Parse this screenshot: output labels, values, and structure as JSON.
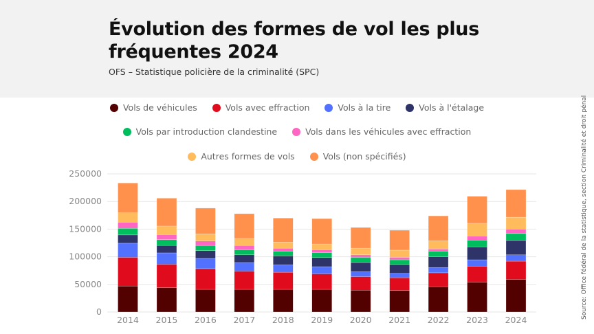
{
  "header": {
    "title": "Évolution des formes de vol les plus fréquentes 2024",
    "subtitle": "OFS – Statistique policière de la criminalité (SPC)"
  },
  "source": "Source: Office fédéral de la statistique, section Criminalité et droit pénal",
  "chart_data": {
    "type": "bar",
    "stacked": true,
    "title": "Évolution des formes de vol les plus fréquentes 2024",
    "subtitle": "OFS – Statistique policière de la criminalité (SPC)",
    "xlabel": "",
    "ylabel": "",
    "ylim": [
      0,
      250000
    ],
    "yticks": [
      "0",
      "50000",
      "100000",
      "150000",
      "200000",
      "250000"
    ],
    "grid": true,
    "legend_placement": "top",
    "categories": [
      "2014",
      "2015",
      "2016",
      "2017",
      "2018",
      "2019",
      "2020",
      "2021",
      "2022",
      "2023",
      "2024"
    ],
    "series": [
      {
        "name": "Vols de véhicules",
        "color": "#520000",
        "values": [
          47000,
          44000,
          41000,
          41000,
          41000,
          41000,
          39500,
          39000,
          46000,
          54000,
          59000
        ]
      },
      {
        "name": "Vols avec effraction",
        "color": "#e00b1c",
        "values": [
          52000,
          42500,
          37500,
          33000,
          31000,
          28000,
          24500,
          23000,
          25000,
          29000,
          33000
        ]
      },
      {
        "name": "Vols à la tire",
        "color": "#5271ff",
        "values": [
          25500,
          20500,
          18500,
          15500,
          13500,
          13000,
          9000,
          8000,
          9500,
          11500,
          11500
        ]
      },
      {
        "name": "Vols à l'étalage",
        "color": "#2e3468",
        "values": [
          15000,
          13500,
          14000,
          14000,
          16000,
          16500,
          16500,
          16000,
          19500,
          23500,
          26000
        ]
      },
      {
        "name": "Vols par introduction clandestine",
        "color": "#00be5e",
        "values": [
          12000,
          10500,
          9500,
          9000,
          8500,
          9000,
          9500,
          8500,
          10000,
          12000,
          12500
        ]
      },
      {
        "name": "Vols dans les véhicules avec effraction",
        "color": "#ff66c4",
        "values": [
          11000,
          9000,
          8000,
          8000,
          5500,
          5000,
          4500,
          4500,
          4000,
          7500,
          8000
        ]
      },
      {
        "name": "Autres formes de vols",
        "color": "#ffbb5c",
        "values": [
          17000,
          15500,
          13000,
          12500,
          11000,
          10500,
          12000,
          13000,
          15000,
          23000,
          21500
        ]
      },
      {
        "name": "Vols (non spécifiés)",
        "color": "#ff914d",
        "values": [
          54000,
          50500,
          46500,
          45000,
          43500,
          46000,
          37500,
          36000,
          45000,
          49000,
          50000
        ]
      }
    ]
  }
}
